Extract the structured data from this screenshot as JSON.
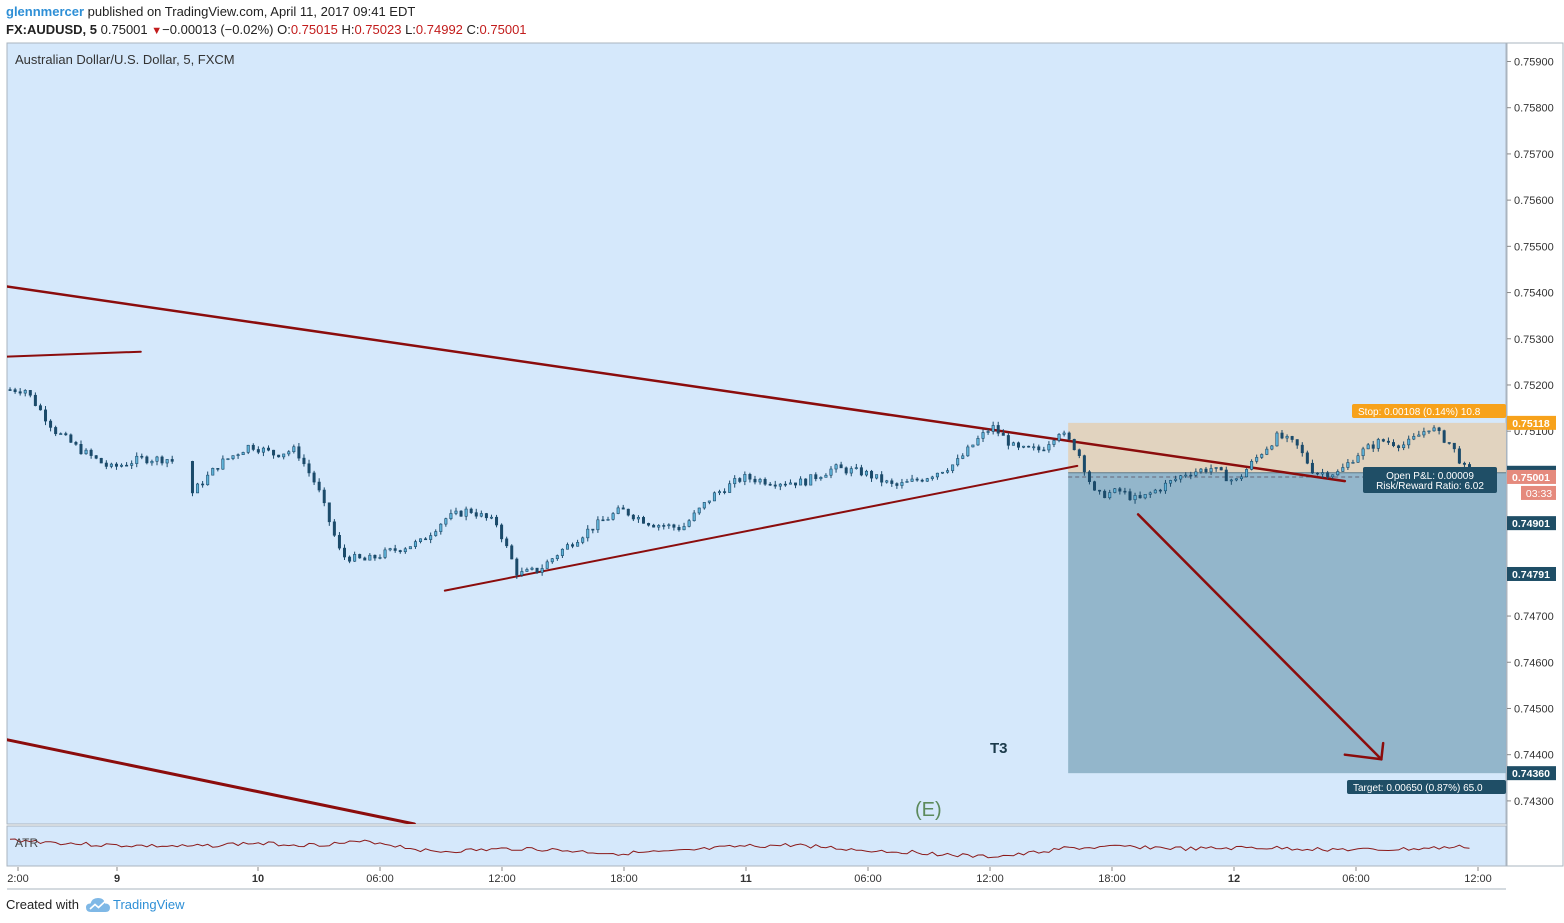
{
  "header": {
    "author": "glennmercer",
    "published_text": "published on TradingView.com, April 11, 2017 09:41 EDT",
    "symbol": "FX:AUDUSD, 5",
    "last": "0.75001",
    "change": "−0.00013 (−0.02%)",
    "open_label": "O:",
    "open": "0.75015",
    "high_label": "H:",
    "high": "0.75023",
    "low_label": "L:",
    "low": "0.74992",
    "close_label": "C:",
    "close": "0.75001"
  },
  "footer": {
    "created_with": "Created with",
    "brand": "TradingView"
  },
  "colors": {
    "plot_bg": "#d5e8fb",
    "trendline": "#8b0c0c",
    "stop_zone": "#e2d2bc",
    "target_zone": "#8fb3c8",
    "candle": "#1a4a6a",
    "atr": "#8b1a1a",
    "stop_tag": "#f7a21b",
    "price_tag": "#1f4e66",
    "close_tag": "#e58a7d",
    "wave_label": "#5c8a5c",
    "pnl_box": "#1f4e66"
  },
  "chart_data": {
    "type": "candlestick",
    "title": "Australian Dollar/U.S. Dollar, 5, FXCM",
    "x_labels": [
      "2:00",
      "9",
      "10",
      "06:00",
      "12:00",
      "18:00",
      "11",
      "06:00",
      "12:00",
      "18:00",
      "12",
      "06:00",
      "12:00"
    ],
    "x_labels_bold": [
      "9",
      "10",
      "11",
      "12"
    ],
    "y_ticks": [
      "0.75900",
      "0.75800",
      "0.75700",
      "0.75600",
      "0.75500",
      "0.75400",
      "0.75300",
      "0.75200",
      "0.75100",
      "0.74700",
      "0.74600",
      "0.74500",
      "0.74400",
      "0.74300"
    ],
    "y_range": [
      0.7425,
      0.7594
    ],
    "price_path": [
      [
        0.05,
        0.7519
      ],
      [
        0.3,
        0.7519
      ],
      [
        0.8,
        0.751
      ],
      [
        1.2,
        0.7506
      ],
      [
        1.7,
        0.7502
      ],
      [
        2.2,
        0.7504
      ],
      [
        2.7,
        0.7504
      ],
      [
        3.0,
        0.7496
      ],
      [
        3.5,
        0.7503
      ],
      [
        4.0,
        0.7507
      ],
      [
        4.4,
        0.7505
      ],
      [
        4.75,
        0.7506
      ],
      [
        5.1,
        0.7498
      ],
      [
        5.5,
        0.7483
      ],
      [
        5.9,
        0.7482
      ],
      [
        6.3,
        0.7484
      ],
      [
        6.8,
        0.7486
      ],
      [
        7.2,
        0.7491
      ],
      [
        7.6,
        0.7493
      ],
      [
        8.05,
        0.749
      ],
      [
        8.4,
        0.7479
      ],
      [
        8.75,
        0.748
      ],
      [
        9.1,
        0.7484
      ],
      [
        9.6,
        0.7489
      ],
      [
        10.1,
        0.7493
      ],
      [
        10.6,
        0.749
      ],
      [
        11.1,
        0.7489
      ],
      [
        11.6,
        0.7496
      ],
      [
        12.1,
        0.75
      ],
      [
        12.6,
        0.7499
      ],
      [
        13.1,
        0.7499
      ],
      [
        13.6,
        0.7502
      ],
      [
        14.1,
        0.7501
      ],
      [
        14.6,
        0.7498
      ],
      [
        15.1,
        0.75
      ],
      [
        15.6,
        0.7503
      ],
      [
        15.95,
        0.7508
      ],
      [
        16.2,
        0.7511
      ],
      [
        16.6,
        0.7506
      ],
      [
        17.0,
        0.7506
      ],
      [
        17.3,
        0.751
      ],
      [
        17.6,
        0.7506
      ],
      [
        17.9,
        0.7496
      ],
      [
        18.3,
        0.7497
      ],
      [
        18.6,
        0.7495
      ],
      [
        19.0,
        0.7498
      ],
      [
        19.4,
        0.7501
      ],
      [
        19.8,
        0.7502
      ],
      [
        20.2,
        0.7499
      ],
      [
        20.6,
        0.7505
      ],
      [
        20.9,
        0.7509
      ],
      [
        21.2,
        0.7507
      ],
      [
        21.5,
        0.7501
      ],
      [
        21.9,
        0.7501
      ],
      [
        22.2,
        0.7505
      ],
      [
        22.6,
        0.7508
      ],
      [
        23.0,
        0.7507
      ],
      [
        23.4,
        0.7511
      ],
      [
        23.75,
        0.7507
      ],
      [
        24.05,
        0.75
      ]
    ],
    "annotations": {
      "wave_e": "(E)",
      "target_label": "T3",
      "stop_label": "Stop: 0.00108 (0.14%) 10.8",
      "target_info": "Target: 0.00650 (0.87%) 65.0",
      "open_pnl": "Open P&L: 0.00009",
      "risk_reward": "Risk/Reward Ratio: 6.02",
      "atr_label": "ATR",
      "stop_price": "0.75118",
      "entry_price": "0.75010",
      "close_price": "0.75001",
      "countdown": "03:33",
      "level_1": "0.74901",
      "level_2": "0.74791",
      "target_price": "0.74360"
    },
    "levels": {
      "stop": 0.75118,
      "entry": 0.7501,
      "close": 0.75001,
      "level_1": 0.74901,
      "level_2": 0.74791,
      "target": 0.7436
    }
  }
}
